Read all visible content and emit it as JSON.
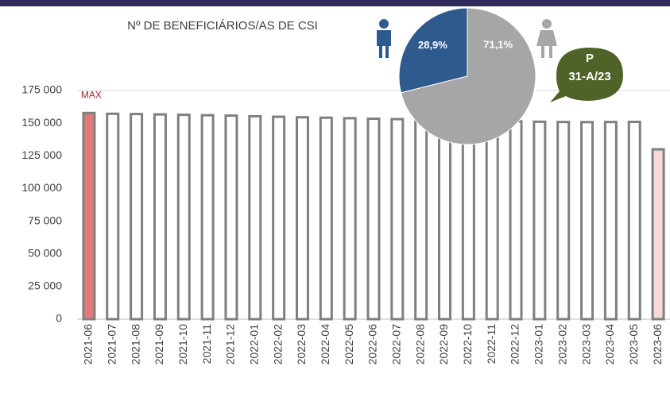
{
  "chart_data": [
    {
      "type": "bar",
      "title": "Nº DE BENEFICIÁRIOS/AS DE CSI",
      "categories": [
        "2021-06",
        "2021-07",
        "2021-08",
        "2021-09",
        "2021-10",
        "2021-11",
        "2021-12",
        "2022-01",
        "2022-02",
        "2022-03",
        "2022-04",
        "2022-05",
        "2022-06",
        "2022-07",
        "2022-08",
        "2022-09",
        "2022-10",
        "2022-11",
        "2022-12",
        "2023-01",
        "2023-02",
        "2023-03",
        "2023-04",
        "2023-05",
        "2023-06"
      ],
      "values": [
        157800,
        157200,
        157000,
        156700,
        156400,
        156100,
        155800,
        155300,
        154900,
        154500,
        154200,
        153800,
        153400,
        153100,
        152700,
        152300,
        152000,
        151700,
        151400,
        151100,
        150900,
        150800,
        150900,
        151000,
        130000
      ],
      "colors": [
        "#e07b7b",
        "#ffffff",
        "#ffffff",
        "#ffffff",
        "#ffffff",
        "#ffffff",
        "#ffffff",
        "#ffffff",
        "#ffffff",
        "#ffffff",
        "#ffffff",
        "#ffffff",
        "#ffffff",
        "#ffffff",
        "#ffffff",
        "#ffffff",
        "#ffffff",
        "#ffffff",
        "#ffffff",
        "#ffffff",
        "#ffffff",
        "#ffffff",
        "#ffffff",
        "#ffffff",
        "#f6dada"
      ],
      "ylim": [
        0,
        175000
      ],
      "yticks": [
        0,
        {
          "value": 25000,
          "label": "25 000"
        },
        {
          "value": 50000,
          "label": "50 000"
        },
        {
          "value": 75000,
          "label": "75 000"
        },
        {
          "value": 100000,
          "label": "100 000"
        },
        {
          "value": 125000,
          "label": "125 000"
        },
        {
          "value": 150000,
          "label": "150 000"
        },
        {
          "value": 175000,
          "label": "175 000"
        }
      ],
      "annotations": {
        "max": "MAX",
        "bubble_top": "P",
        "bubble_bottom": "31-A/23"
      }
    },
    {
      "type": "pie",
      "categories": [
        "Homens",
        "Mulheres"
      ],
      "values": [
        28.9,
        71.1
      ],
      "value_labels": [
        "28,9%",
        "71,1%"
      ],
      "colors": [
        "#2e5a8e",
        "#a6a6a6"
      ]
    }
  ]
}
